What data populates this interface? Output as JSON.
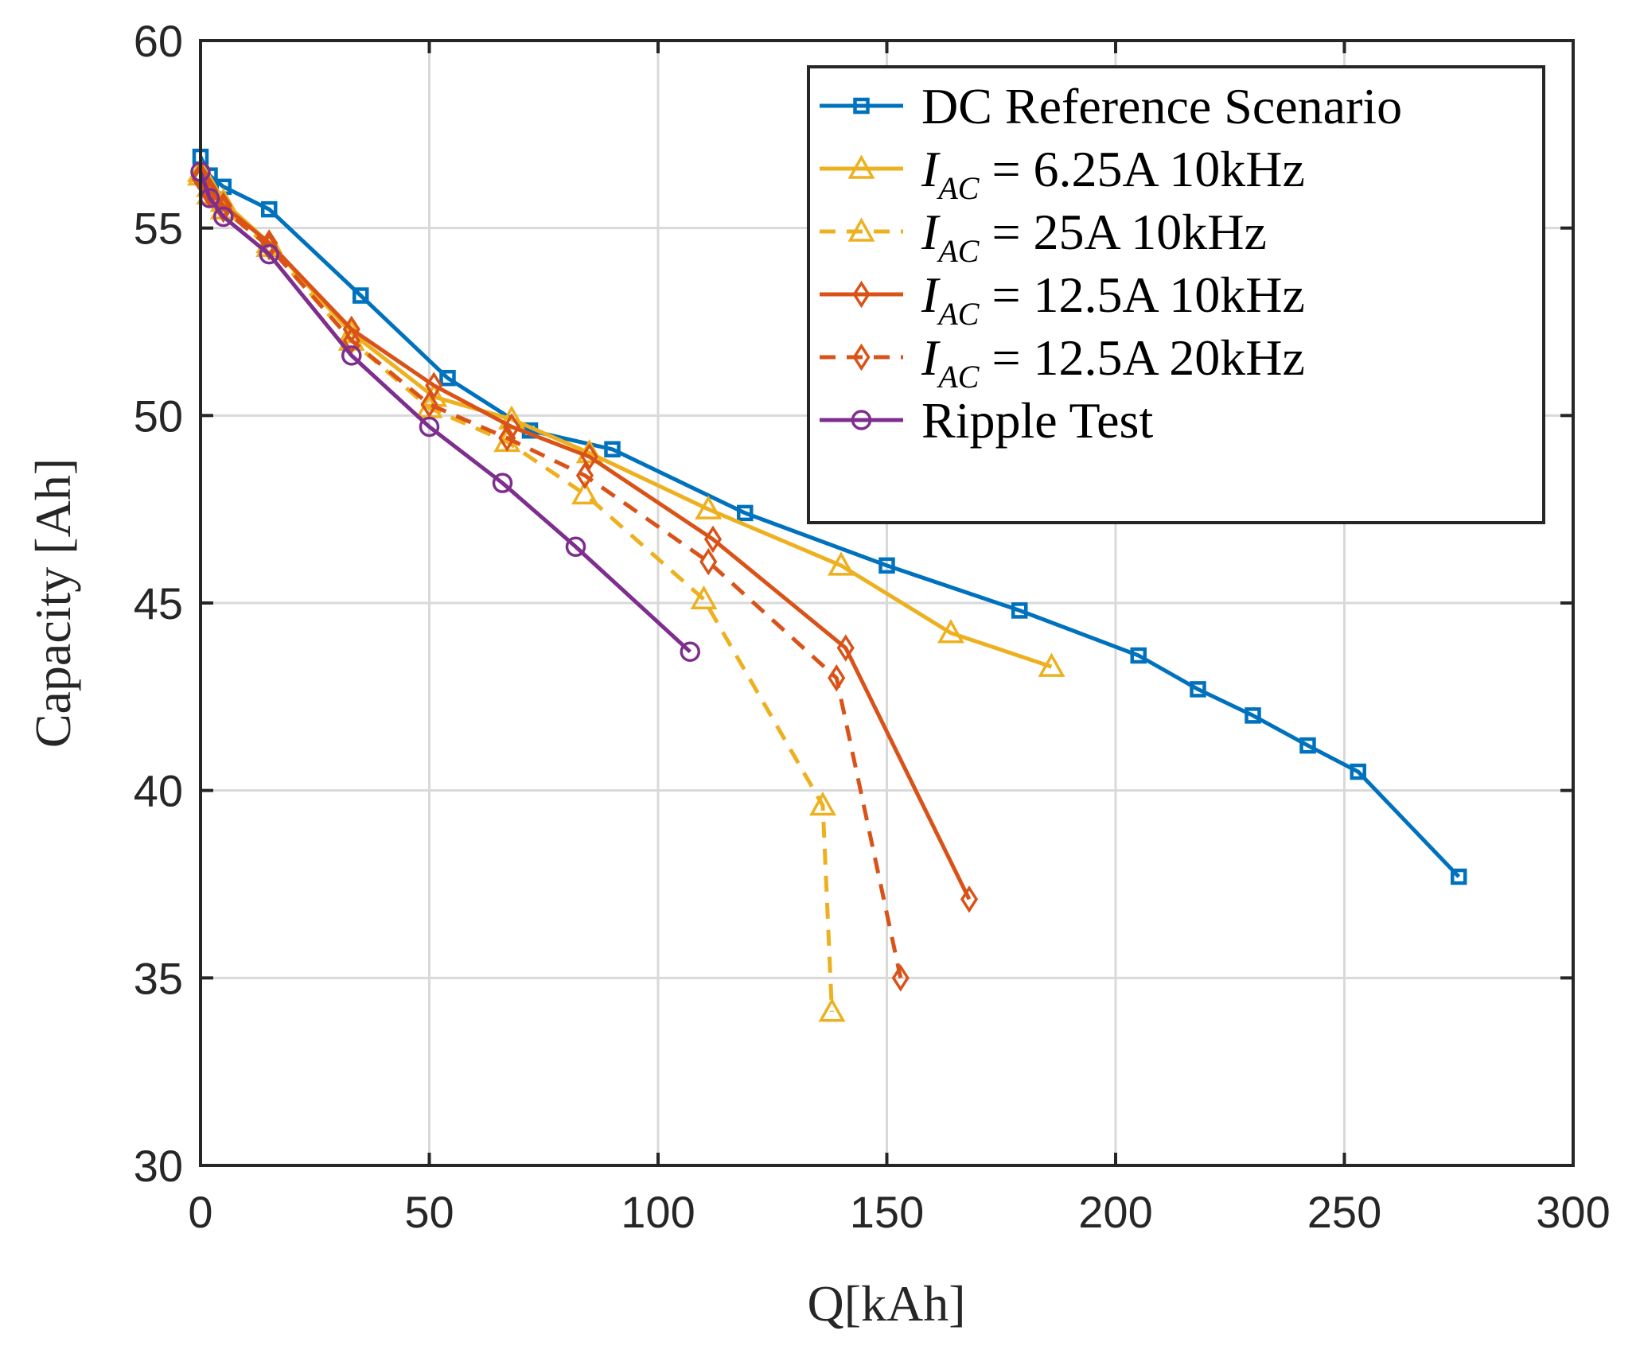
{
  "chart_data": {
    "type": "line",
    "title": "",
    "xlabel": "Q[kAh]",
    "ylabel": "Capacity [Ah]",
    "xlim": [
      0,
      300
    ],
    "ylim": [
      30,
      60
    ],
    "xticks": [
      "0",
      "50",
      "100",
      "150",
      "200",
      "250",
      "300"
    ],
    "yticks": [
      "30",
      "35",
      "40",
      "45",
      "50",
      "55",
      "60"
    ],
    "grid": true,
    "legend_position": "top-right",
    "series": [
      {
        "name": "DC Reference Scenario",
        "legend": {
          "main": "DC Reference Scenario"
        },
        "color": "#0072BD",
        "dash": "solid",
        "marker": "square",
        "x": [
          0,
          2,
          5,
          15,
          35,
          54,
          72,
          90,
          119,
          150,
          179,
          205,
          218,
          230,
          242,
          253,
          275
        ],
        "y": [
          56.9,
          56.4,
          56.1,
          55.5,
          53.2,
          51.0,
          49.6,
          49.1,
          47.4,
          46.0,
          44.8,
          43.6,
          42.7,
          42.0,
          41.2,
          40.5,
          37.7
        ]
      },
      {
        "name": "I_AC = 6.25A 10kHz",
        "legend": {
          "main": "I",
          "sub": "AC",
          "rest": " = 6.25A 10kHz"
        },
        "color": "#EDB120",
        "dash": "solid",
        "marker": "triangle-open",
        "x": [
          0,
          2,
          5,
          15,
          33,
          51,
          68,
          85,
          111,
          140,
          164,
          186
        ],
        "y": [
          56.5,
          56.1,
          55.7,
          54.6,
          52.2,
          50.5,
          49.9,
          49.0,
          47.5,
          46.0,
          44.2,
          43.3
        ]
      },
      {
        "name": "I_AC = 25A 10kHz",
        "legend": {
          "main": "I",
          "sub": "AC",
          "rest": " = 25A 10kHz"
        },
        "color": "#EDB120",
        "dash": "dashed",
        "marker": "triangle-open",
        "x": [
          0,
          2,
          5,
          15,
          33,
          50,
          67,
          84,
          110,
          136,
          138
        ],
        "y": [
          56.4,
          55.9,
          55.5,
          54.5,
          52.0,
          50.2,
          49.3,
          47.9,
          45.1,
          39.6,
          34.1
        ]
      },
      {
        "name": "I_AC = 12.5A 10kHz",
        "legend": {
          "main": "I",
          "sub": "AC",
          "rest": " = 12.5A 10kHz"
        },
        "color": "#D95319",
        "dash": "solid",
        "marker": "diamond-open",
        "x": [
          0,
          2,
          5,
          15,
          33,
          51,
          68,
          85,
          112,
          141,
          168
        ],
        "y": [
          56.4,
          56.0,
          55.6,
          54.6,
          52.3,
          50.8,
          49.7,
          48.9,
          46.7,
          43.8,
          37.1
        ]
      },
      {
        "name": "I_AC = 12.5A 20kHz",
        "legend": {
          "main": "I",
          "sub": "AC",
          "rest": " = 12.5A 20kHz"
        },
        "color": "#D95319",
        "dash": "dashed",
        "marker": "diamond-open",
        "x": [
          0,
          2,
          5,
          15,
          33,
          50,
          67,
          84,
          111,
          139,
          153
        ],
        "y": [
          56.3,
          55.9,
          55.5,
          54.5,
          52.0,
          50.3,
          49.4,
          48.4,
          46.1,
          43.0,
          35.0
        ]
      },
      {
        "name": "Ripple Test",
        "legend": {
          "main": "Ripple Test"
        },
        "color": "#7E2F8E",
        "dash": "solid",
        "marker": "circle-open",
        "x": [
          0,
          2,
          5,
          15,
          33,
          50,
          66,
          82,
          107
        ],
        "y": [
          56.5,
          55.8,
          55.3,
          54.3,
          51.6,
          49.7,
          48.2,
          46.5,
          43.7
        ]
      }
    ]
  }
}
